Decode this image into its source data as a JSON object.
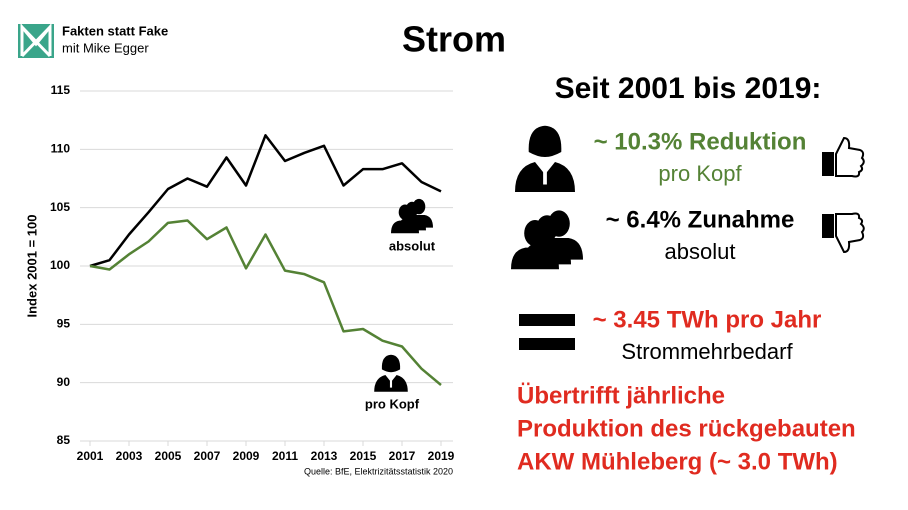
{
  "logo": {
    "title": "Fakten statt Fake",
    "subtitle": "mit Mike Egger"
  },
  "chart_data": {
    "type": "line",
    "title": "Strom",
    "y_label": "Index 2001 = 100",
    "source": "Quelle: BfE, Elektrizitätsstatistik 2020",
    "x": [
      2001,
      2002,
      2003,
      2004,
      2005,
      2006,
      2007,
      2008,
      2009,
      2010,
      2011,
      2012,
      2013,
      2014,
      2015,
      2016,
      2017,
      2018,
      2019
    ],
    "series": [
      {
        "name": "absolut",
        "color": "#000000",
        "values": [
          100,
          100.5,
          102.7,
          104.6,
          106.6,
          107.5,
          106.8,
          109.3,
          106.9,
          111.2,
          109.0,
          109.7,
          110.3,
          106.9,
          108.3,
          108.3,
          108.8,
          107.2,
          106.4
        ]
      },
      {
        "name": "pro Kopf",
        "color": "#548235",
        "values": [
          100,
          99.7,
          101.0,
          102.1,
          103.7,
          103.9,
          102.3,
          103.3,
          99.8,
          102.7,
          99.6,
          99.3,
          98.6,
          94.4,
          94.6,
          93.6,
          93.1,
          91.2,
          89.8
        ]
      }
    ],
    "xlim": [
      2001,
      2019
    ],
    "xticks": [
      2001,
      2003,
      2005,
      2007,
      2009,
      2011,
      2013,
      2015,
      2017,
      2019
    ],
    "ylim": [
      85,
      115
    ],
    "yticks": [
      85,
      90,
      95,
      100,
      105,
      110,
      115
    ],
    "grid": true
  },
  "panel": {
    "heading": "Seit 2001 bis 2019:",
    "per_capita": {
      "headline": "~ 10.3% Reduktion",
      "label": "pro Kopf"
    },
    "absolute": {
      "headline": "~ 6.4% Zunahme",
      "label": "absolut"
    },
    "demand": {
      "headline": "~ 3.45 TWh pro Jahr",
      "label": "Strommehrbedarf"
    },
    "conclusion": [
      "Übertrifft jährliche",
      "Produktion des rückgebauten",
      "AKW Mühleberg (~ 3.0 TWh)"
    ]
  }
}
